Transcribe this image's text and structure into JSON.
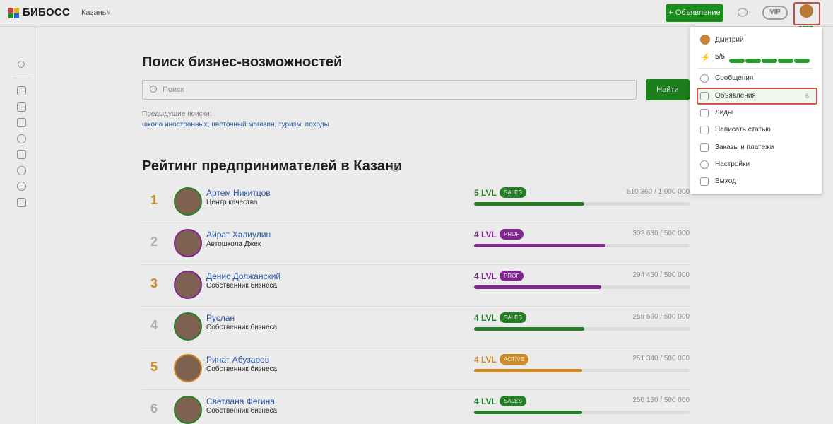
{
  "header": {
    "brand": "БИБОСС",
    "city": "Казань",
    "new_ad_button": "+ Объявление",
    "vip_label": "VIP",
    "logo_colors": [
      "#e0473c",
      "#f2c21a",
      "#2a9a2a",
      "#2a6fd4"
    ]
  },
  "search": {
    "title": "Поиск бизнес-возможностей",
    "placeholder": "Поиск",
    "button": "Найти",
    "previous_label": "Предыдущие поиски:",
    "previous": [
      "школа иностранных",
      "цветочный магазин",
      "туризм",
      "походы"
    ]
  },
  "rating": {
    "title": "Рейтинг предпринимателей в Казани",
    "help_icon": "?",
    "rows": [
      {
        "rank": "1",
        "name": "Артем Никитцов",
        "sub": "Центр качества",
        "lvl": "5 LVL",
        "badge": "SALES",
        "points": "510 360 / 1 000 000",
        "progress": 0.51,
        "color": "#2a8a2a"
      },
      {
        "rank": "2",
        "name": "Айрат Халиулин",
        "sub": "Автошкола Джек",
        "lvl": "4 LVL",
        "badge": "PROF",
        "points": "302 630 / 500 000",
        "progress": 0.61,
        "color": "#8a2a9a"
      },
      {
        "rank": "3",
        "name": "Денис Должанский",
        "sub": "Собственник бизнеса",
        "lvl": "4 LVL",
        "badge": "PROF",
        "points": "294 450 / 500 000",
        "progress": 0.59,
        "color": "#8a2a9a"
      },
      {
        "rank": "4",
        "name": "Руслан",
        "sub": "Собственник бизнеса",
        "lvl": "4 LVL",
        "badge": "SALES",
        "points": "255 560 / 500 000",
        "progress": 0.51,
        "color": "#2a8a2a"
      },
      {
        "rank": "5",
        "name": "Ринат Абузаров",
        "sub": "Собственник бизнеса",
        "lvl": "4 LVL",
        "badge": "ACTIVE",
        "points": "251 340 / 500 000",
        "progress": 0.5,
        "color": "#e0962a"
      },
      {
        "rank": "6",
        "name": "Светлана Фегина",
        "sub": "Собственник бизнеса",
        "lvl": "4 LVL",
        "badge": "SALES",
        "points": "250 150 / 500 000",
        "progress": 0.5,
        "color": "#2a8a2a"
      }
    ]
  },
  "menu": {
    "user": "Дмитрий",
    "energy": "5/5",
    "energy_level": 1.0,
    "items": [
      {
        "label": "Сообщения",
        "icon": "chat-icon"
      },
      {
        "label": "Объявления",
        "icon": "megaphone-icon",
        "count": "6"
      },
      {
        "label": "Лиды",
        "icon": "funnel-icon"
      },
      {
        "label": "Написать статью",
        "icon": "pencil-icon"
      },
      {
        "label": "Заказы и платежи",
        "icon": "cart-icon"
      },
      {
        "label": "Настройки",
        "icon": "gear-icon"
      },
      {
        "label": "Выход",
        "icon": "logout-icon"
      }
    ]
  },
  "sidebar_icons": [
    "users-icon",
    "store-icon",
    "briefcase-icon",
    "coins-icon",
    "calendar-icon",
    "dollar-icon",
    "bulb-icon",
    "clipboard-icon"
  ]
}
